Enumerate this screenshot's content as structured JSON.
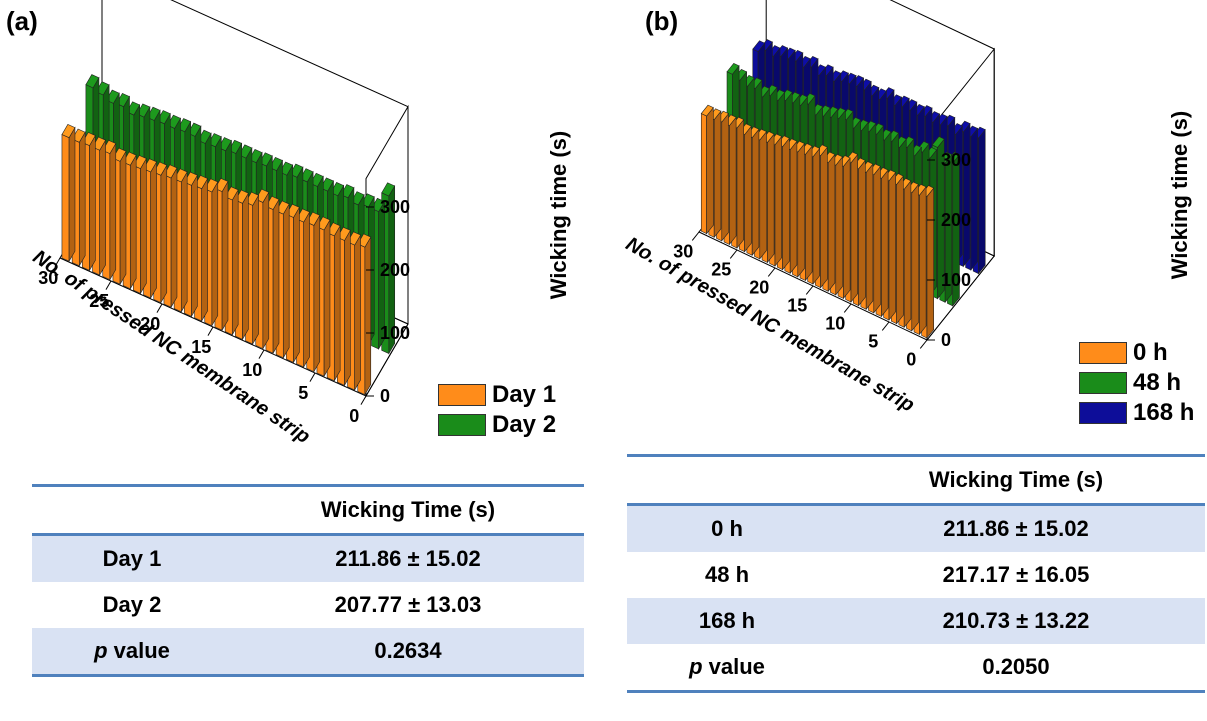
{
  "chart_data": [
    {
      "panel_label": "(a)",
      "type": "bar3d",
      "xlabel": "No. of pressed NC membrane strip",
      "zlabel": "Wicking time (s)",
      "x_ticks": [
        0,
        5,
        10,
        15,
        20,
        25,
        30
      ],
      "z_ticks": [
        0,
        100,
        200,
        300
      ],
      "zlim": [
        0,
        300
      ],
      "legend": [
        {
          "label": "Day 1",
          "color": "#ff8c1a"
        },
        {
          "label": "Day 2",
          "color": "#1a8c1a"
        }
      ],
      "series": [
        {
          "name": "Day 1",
          "color": "#ff8c1a",
          "values": [
            196,
            196,
            198,
            198,
            200,
            195,
            196,
            198,
            200,
            202,
            205,
            206,
            208,
            210,
            212,
            220,
            214,
            216,
            220,
            232,
            228,
            228,
            230,
            230,
            232,
            232,
            230,
            230,
            230,
            234
          ]
        },
        {
          "name": "Day 2",
          "color": "#1a8c1a",
          "values": [
            210,
            206,
            200,
            202,
            196,
            200,
            202,
            204,
            204,
            206,
            206,
            202,
            204,
            205,
            208,
            208,
            208,
            210,
            210,
            210,
            214,
            214,
            214,
            214,
            214,
            218,
            214,
            218,
            218,
            250
          ]
        }
      ],
      "table": {
        "header": [
          "",
          "Wicking Time (s)"
        ],
        "rows": [
          {
            "label": "Day 1",
            "value": "211.86 ± 15.02"
          },
          {
            "label": "Day 2",
            "value": "207.77 ± 13.03"
          }
        ],
        "p_label_italic": "p",
        "p_label_rest": " value",
        "p_value": "0.2634"
      }
    },
    {
      "panel_label": "(b)",
      "type": "bar3d",
      "xlabel": "No. of pressed NC membrane strip",
      "zlabel": "Wicking time (s)",
      "x_ticks": [
        0,
        5,
        10,
        15,
        20,
        25,
        30
      ],
      "z_ticks": [
        0,
        100,
        200,
        300
      ],
      "zlim": [
        0,
        300
      ],
      "legend": [
        {
          "label": "0 h",
          "color": "#ff8c1a"
        },
        {
          "label": "48 h",
          "color": "#1a8c1a"
        },
        {
          "label": "168 h",
          "color": "#0d0d99"
        }
      ],
      "series": [
        {
          "name": "0 h",
          "color": "#ff8c1a",
          "values": [
            196,
            196,
            198,
            198,
            200,
            195,
            196,
            198,
            200,
            202,
            205,
            206,
            208,
            210,
            212,
            220,
            214,
            216,
            220,
            232,
            228,
            228,
            230,
            230,
            232,
            232,
            230,
            230,
            232,
            236
          ]
        },
        {
          "name": "48 h",
          "color": "#1a8c1a",
          "values": [
            212,
            208,
            204,
            206,
            198,
            206,
            204,
            210,
            212,
            214,
            222,
            210,
            214,
            218,
            222,
            226,
            218,
            220,
            224,
            226,
            222,
            226,
            222,
            228,
            220,
            232,
            228,
            252,
            232,
            238
          ]
        },
        {
          "name": "168 h",
          "color": "#0d0d99",
          "values": [
            196,
            204,
            200,
            206,
            208,
            210,
            206,
            212,
            204,
            210,
            206,
            212,
            214,
            216,
            216,
            212,
            212,
            220,
            214,
            218,
            218,
            216,
            220,
            216,
            218,
            222,
            214,
            224,
            222,
            226
          ]
        }
      ],
      "table": {
        "header": [
          "",
          "Wicking Time (s)"
        ],
        "rows": [
          {
            "label": "0 h",
            "value": "211.86 ± 15.02"
          },
          {
            "label": "48 h",
            "value": "217.17 ± 16.05"
          },
          {
            "label": "168 h",
            "value": "210.73 ± 13.22"
          }
        ],
        "p_label_italic": "p",
        "p_label_rest": " value",
        "p_value": "0.2050"
      }
    }
  ]
}
